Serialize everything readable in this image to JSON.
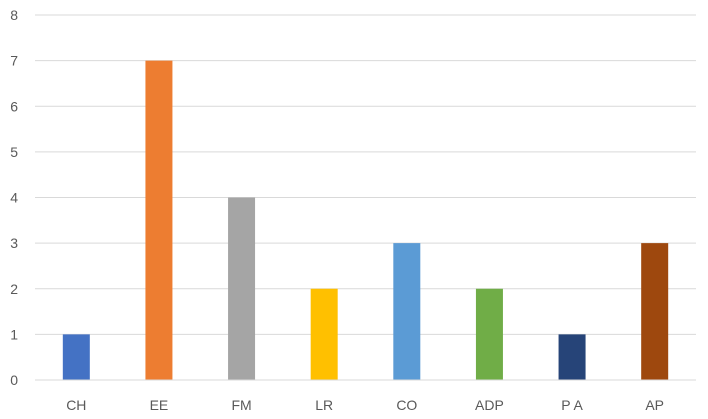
{
  "chart_data": {
    "type": "bar",
    "title": "",
    "xlabel": "",
    "ylabel": "",
    "categories": [
      "CH",
      "EE",
      "FM",
      "LR",
      "CO",
      "ADP",
      "P A",
      "AP"
    ],
    "values": [
      1,
      7,
      4,
      2,
      3,
      2,
      1,
      3
    ],
    "colors": [
      "#4472c4",
      "#ed7d31",
      "#a5a5a5",
      "#ffc000",
      "#5b9bd5",
      "#70ad47",
      "#264478",
      "#9e480e"
    ],
    "ylim": [
      0,
      8
    ],
    "yticks": [
      "0",
      "1",
      "2",
      "3",
      "4",
      "5",
      "6",
      "7",
      "8"
    ],
    "grid": true,
    "legend": "none"
  }
}
